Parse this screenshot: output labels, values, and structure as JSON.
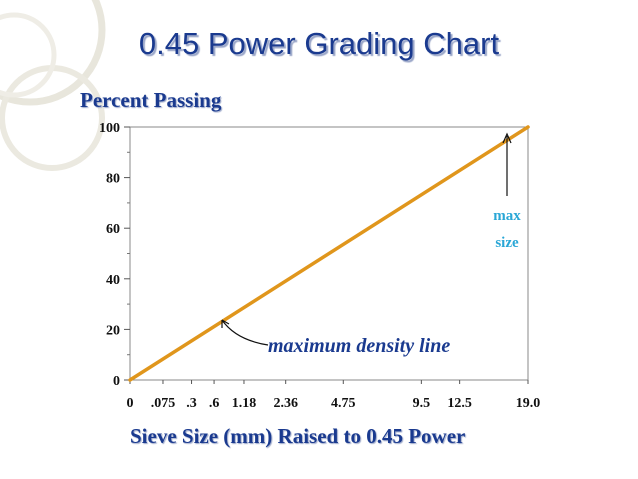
{
  "slide": {
    "title": "0.45 Power Grading Chart"
  },
  "chart_data": {
    "type": "line",
    "title": "0.45 Power Grading Chart",
    "ylabel": "Percent Passing",
    "xlabel": "Sieve Size (mm) Raised to 0.45 Power",
    "x_scale": "power 0.45",
    "xlim": [
      0,
      19.0
    ],
    "ylim": [
      0,
      100
    ],
    "y_ticks": [
      0,
      20,
      40,
      60,
      80,
      100
    ],
    "x_ticks": [
      {
        "label": "0",
        "value": 0
      },
      {
        "label": ".075",
        "value": 0.075
      },
      {
        "label": ".3",
        "value": 0.3
      },
      {
        "label": ".6",
        "value": 0.6
      },
      {
        "label": "1.18",
        "value": 1.18
      },
      {
        "label": "2.36",
        "value": 2.36
      },
      {
        "label": "4.75",
        "value": 4.75
      },
      {
        "label": "9.5",
        "value": 9.5
      },
      {
        "label": "12.5",
        "value": 12.5
      },
      {
        "label": "19.0",
        "value": 19.0
      }
    ],
    "grid": false,
    "series": [
      {
        "color": "#e0961c",
        "points": [
          [
            0,
            0
          ],
          [
            19.0,
            100
          ]
        ]
      }
    ],
    "annotations": {
      "line_label": "maximum density line",
      "max_label_line1": "max",
      "max_label_line2": "size"
    },
    "colors": {
      "line": "#e0961c",
      "title": "#1a3a8f",
      "max_label": "#2aa7d6"
    }
  }
}
